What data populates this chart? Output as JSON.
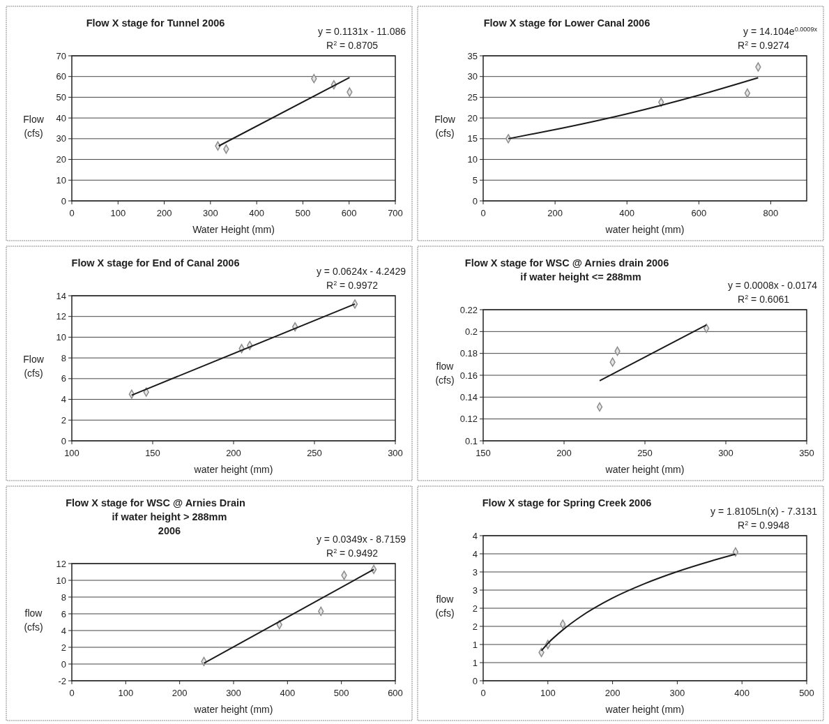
{
  "chart_data": [
    {
      "type": "scatter",
      "title": "Flow X stage for Tunnel 2006",
      "xlabel": "Water Height (mm)",
      "ylabel": "Flow (cfs)",
      "annotations": [
        "y = 0.1131x - 11.086",
        "R$^{2}$ = 0.8705"
      ],
      "xlim": [
        0,
        700
      ],
      "xticks": [
        0,
        100,
        200,
        300,
        400,
        500,
        600,
        700
      ],
      "ylim": [
        0,
        70
      ],
      "yticks": [
        0,
        10,
        20,
        30,
        40,
        50,
        60,
        70
      ],
      "grid": "y",
      "series": [
        {
          "marker": "diamond",
          "color": "#8c8c8c",
          "x": [
            316,
            334,
            524,
            567,
            601
          ],
          "values": [
            26.5,
            25,
            59,
            56,
            52.5
          ]
        },
        {
          "type": "line",
          "marker": "none",
          "color": "#1a1a1a",
          "x": [
            318,
            601
          ],
          "values": [
            26.5,
            59.5
          ]
        }
      ]
    },
    {
      "type": "scatter",
      "title": "Flow X stage for Lower Canal 2006",
      "xlabel": "water height (mm)",
      "ylabel": "Flow (cfs)",
      "annotations": [
        "y = 14.104e$^{0.0009x}$",
        "R$^{2}$ = 0.9274"
      ],
      "xlim": [
        0,
        900
      ],
      "xticks": [
        0,
        200,
        400,
        600,
        800
      ],
      "ylim": [
        0,
        35
      ],
      "yticks": [
        0,
        5,
        10,
        15,
        20,
        25,
        30,
        35
      ],
      "grid": "y",
      "series": [
        {
          "marker": "diamond",
          "color": "#8c8c8c",
          "x": [
            70,
            495,
            735,
            765
          ],
          "values": [
            15,
            23.8,
            26,
            32.3
          ]
        },
        {
          "type": "line",
          "marker": "none",
          "color": "#1a1a1a",
          "x": [
            70,
            200,
            400,
            600,
            765
          ],
          "values": [
            15,
            17.2,
            21,
            25.5,
            29.7
          ]
        }
      ]
    },
    {
      "type": "scatter",
      "title": "Flow X stage for End of Canal 2006",
      "xlabel": "water height (mm)",
      "ylabel": "Flow (cfs)",
      "annotations": [
        "y = 0.0624x - 4.2429",
        "R$^{2}$ = 0.9972"
      ],
      "xlim": [
        100,
        300
      ],
      "xticks": [
        100,
        150,
        200,
        250,
        300
      ],
      "ylim": [
        0,
        14
      ],
      "yticks": [
        0,
        2,
        4,
        6,
        8,
        10,
        12,
        14
      ],
      "grid": "y",
      "series": [
        {
          "marker": "diamond",
          "color": "#8c8c8c",
          "x": [
            137,
            146,
            205,
            210,
            238,
            275
          ],
          "values": [
            4.5,
            4.7,
            8.9,
            9.2,
            11,
            13.2
          ]
        },
        {
          "type": "line",
          "marker": "none",
          "color": "#1a1a1a",
          "x": [
            137,
            275
          ],
          "values": [
            4.4,
            13.2
          ]
        }
      ]
    },
    {
      "type": "scatter",
      "title": "Flow X stage for WSC @ Arnies drain 2006",
      "subtitle": "if water height <= 288mm",
      "xlabel": "water height (mm)",
      "ylabel": "flow (cfs)",
      "annotations": [
        "y = 0.0008x - 0.0174",
        "R$^{2}$ = 0.6061"
      ],
      "xlim": [
        150,
        350
      ],
      "xticks": [
        150,
        200,
        250,
        300,
        350
      ],
      "ylim": [
        0.1,
        0.22
      ],
      "yticks": [
        0.1,
        0.12,
        0.14,
        0.16,
        0.18,
        0.2,
        0.22
      ],
      "grid": "y",
      "series": [
        {
          "marker": "diamond",
          "color": "#8c8c8c",
          "x": [
            222,
            230,
            233,
            288
          ],
          "values": [
            0.131,
            0.172,
            0.182,
            0.203
          ]
        },
        {
          "type": "line",
          "marker": "none",
          "color": "#1a1a1a",
          "x": [
            222,
            288
          ],
          "values": [
            0.155,
            0.206
          ]
        }
      ]
    },
    {
      "type": "scatter",
      "title": "Flow X stage for WSC @ Arnies Drain",
      "subtitle": "if water height > 288mm\n2006",
      "xlabel": "water height (mm)",
      "ylabel": "flow (cfs)",
      "annotations": [
        "y = 0.0349x - 8.7159",
        "R$^{2}$ = 0.9492"
      ],
      "xlim": [
        0,
        600
      ],
      "xticks": [
        0,
        100,
        200,
        300,
        400,
        500,
        600
      ],
      "ylim": [
        -2,
        12
      ],
      "yticks": [
        -2,
        0,
        2,
        4,
        6,
        8,
        10,
        12
      ],
      "grid": "y",
      "series": [
        {
          "marker": "diamond",
          "color": "#8c8c8c",
          "x": [
            245,
            385,
            462,
            505,
            560
          ],
          "values": [
            0.3,
            4.7,
            6.3,
            10.6,
            11.3
          ]
        },
        {
          "type": "line",
          "marker": "none",
          "color": "#1a1a1a",
          "x": [
            245,
            560
          ],
          "values": [
            0.1,
            11.3
          ]
        }
      ]
    },
    {
      "type": "scatter",
      "title": "Flow X stage for Spring Creek 2006",
      "xlabel": "water height (mm)",
      "ylabel": "flow (cfs)",
      "annotations": [
        "y = 1.8105Ln(x) - 7.3131",
        "R$^{2}$ = 0.9948"
      ],
      "xlim": [
        0,
        500
      ],
      "xticks": [
        0,
        100,
        200,
        300,
        400,
        500
      ],
      "ylim": [
        0,
        4
      ],
      "yticks": [
        0,
        {
          "value": 0.5,
          "label": "1"
        },
        1,
        {
          "value": 1.5,
          "label": "2"
        },
        2,
        {
          "value": 2.5,
          "label": "3"
        },
        3,
        {
          "value": 3.5,
          "label": "4"
        },
        4
      ],
      "grid": "y",
      "series": [
        {
          "marker": "diamond",
          "color": "#8c8c8c",
          "x": [
            90,
            100,
            123,
            390
          ],
          "values": [
            0.78,
            1.0,
            1.56,
            3.55
          ]
        },
        {
          "type": "line",
          "marker": "none",
          "color": "#1a1a1a",
          "x": [
            90,
            100,
            125,
            150,
            200,
            250,
            300,
            350,
            390
          ],
          "values": [
            0.83,
            1.03,
            1.43,
            1.76,
            2.28,
            2.68,
            3.01,
            3.29,
            3.49
          ]
        }
      ]
    }
  ]
}
